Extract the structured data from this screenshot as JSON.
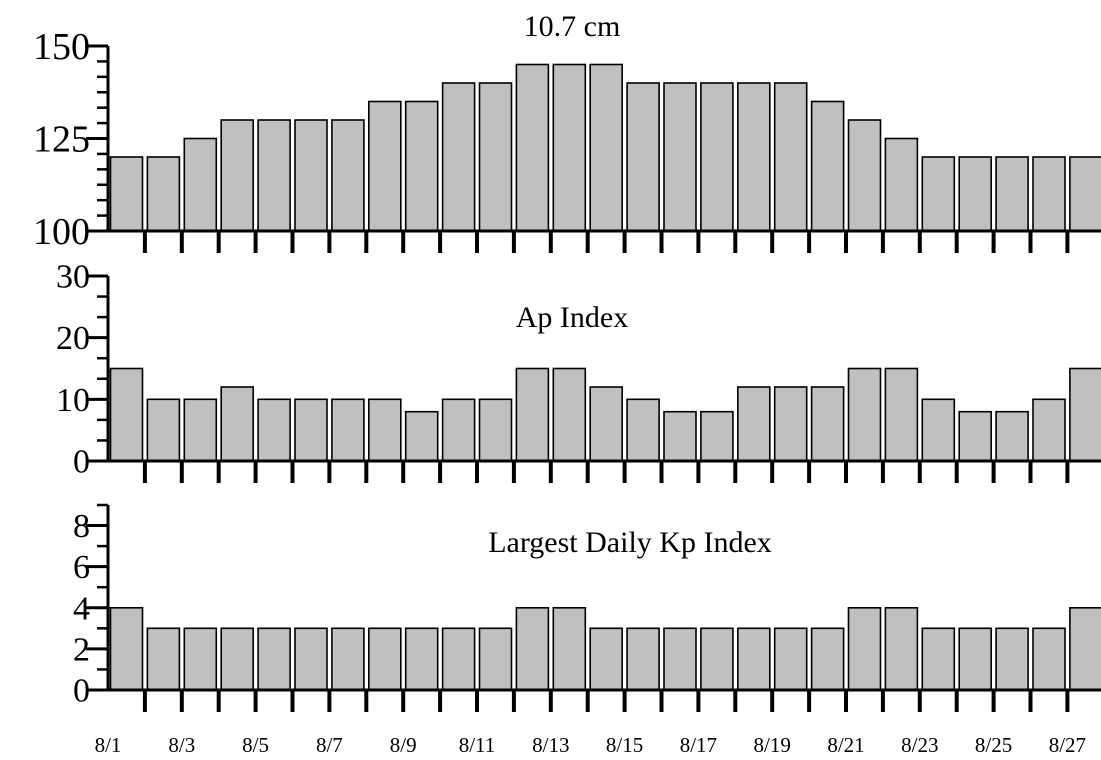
{
  "chart_data": [
    {
      "type": "bar",
      "title": "10.7 cm",
      "ylim": [
        100,
        150
      ],
      "yticks": [
        100,
        125,
        150
      ],
      "values": [
        120,
        120,
        125,
        130,
        130,
        130,
        130,
        135,
        135,
        140,
        140,
        145,
        145,
        145,
        140,
        140,
        140,
        140,
        140,
        135,
        130,
        125,
        120,
        120,
        120,
        120,
        120
      ]
    },
    {
      "type": "bar",
      "title": "Ap Index",
      "ylim": [
        0,
        30
      ],
      "yticks": [
        0,
        10,
        20,
        30
      ],
      "values": [
        15,
        10,
        10,
        12,
        10,
        10,
        10,
        10,
        8,
        10,
        10,
        15,
        15,
        12,
        10,
        8,
        8,
        12,
        12,
        12,
        15,
        15,
        10,
        8,
        8,
        10,
        15
      ]
    },
    {
      "type": "bar",
      "title": "Largest Daily Kp Index",
      "ylim": [
        0,
        9
      ],
      "yticks": [
        0,
        2,
        4,
        6,
        8
      ],
      "values": [
        4,
        3,
        3,
        3,
        3,
        3,
        3,
        3,
        3,
        3,
        3,
        4,
        4,
        3,
        3,
        3,
        3,
        3,
        3,
        3,
        4,
        4,
        3,
        3,
        3,
        3,
        4
      ]
    }
  ],
  "x_tick_labels": [
    "8/1",
    "8/3",
    "8/5",
    "8/7",
    "8/9",
    "8/11",
    "8/13",
    "8/15",
    "8/17",
    "8/19",
    "8/21",
    "8/23",
    "8/25",
    "8/27"
  ],
  "colors": {
    "bar_fill": "#c0c0c0",
    "bar_stroke": "#000000",
    "axis": "#000000"
  }
}
